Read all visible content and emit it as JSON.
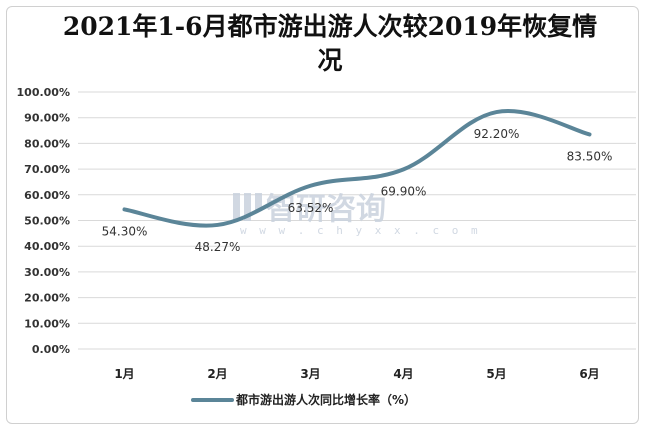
{
  "chart_data": {
    "type": "line",
    "title": "2021年1-6月都市游出游人次较2019年恢复情况",
    "categories": [
      "1月",
      "2月",
      "3月",
      "4月",
      "5月",
      "6月"
    ],
    "series": [
      {
        "name": "都市游出游人次同比增长率（%）",
        "values": [
          54.3,
          48.27,
          63.52,
          69.9,
          92.2,
          83.5
        ],
        "labels": [
          "54.30%",
          "48.27%",
          "63.52%",
          "69.90%",
          "92.20%",
          "83.50%"
        ]
      }
    ],
    "y_ticks": [
      "0.00%",
      "10.00%",
      "20.00%",
      "30.00%",
      "40.00%",
      "50.00%",
      "60.00%",
      "70.00%",
      "80.00%",
      "90.00%",
      "100.00%"
    ],
    "ylim": [
      0,
      100
    ],
    "grid": true,
    "legend_position": "bottom",
    "line_color": "#5b8598"
  },
  "watermark": {
    "brand": "智研咨询",
    "url": "w w w . c h y x x . c o m"
  }
}
